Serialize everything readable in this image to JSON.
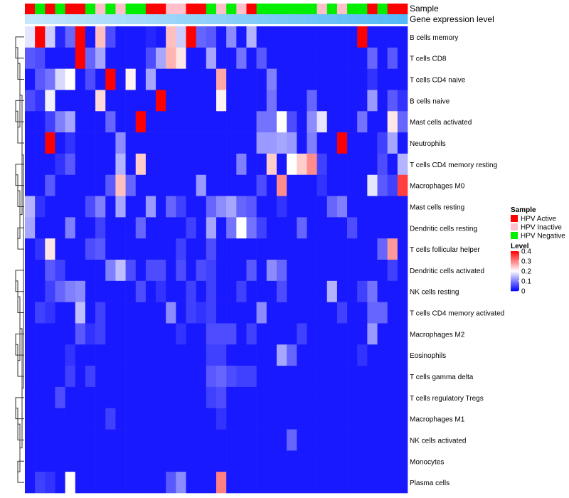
{
  "chart_data": {
    "type": "heatmap",
    "annotation_labels": {
      "sample": "Sample",
      "gene_expression": "Gene expression level"
    },
    "rows": [
      "B cells memory",
      "T cells CD8",
      "T cells CD4 naive",
      "B cells naive",
      "Mast cells activated",
      "Neutrophils",
      "T cells CD4 memory resting",
      "Macrophages M0",
      "Mast cells resting",
      "Dendritic cells resting",
      "T cells follicular helper",
      "Dendritic cells activated",
      "NK cells resting",
      "T cells CD4 memory activated",
      "Macrophages M2",
      "Eosinophils",
      "T cells gamma delta",
      "T cells regulatory  Tregs",
      "Macrophages M1",
      "NK cells activated",
      "Monocytes",
      "Plasma cells"
    ],
    "samples": [
      "HPV Active",
      "HPV Negative",
      "HPV Active",
      "HPV Negative",
      "HPV Active",
      "HPV Active",
      "HPV Negative",
      "HPV Inactive",
      "HPV Negative",
      "HPV Inactive",
      "HPV Negative",
      "HPV Negative",
      "HPV Active",
      "HPV Active",
      "HPV Inactive",
      "HPV Inactive",
      "HPV Active",
      "HPV Active",
      "HPV Negative",
      "HPV Inactive",
      "HPV Negative",
      "HPV Inactive",
      "HPV Active",
      "HPV Negative",
      "HPV Negative",
      "HPV Negative",
      "HPV Negative",
      "HPV Negative",
      "HPV Negative",
      "HPV Inactive",
      "HPV Negative",
      "HPV Inactive",
      "HPV Negative",
      "HPV Negative",
      "HPV Active",
      "HPV Negative",
      "HPV Active",
      "HPV Active"
    ],
    "sample_colors": {
      "HPV Active": "#ff0000",
      "HPV Inactive": "#ffc0cb",
      "HPV Negative": "#00ee00"
    },
    "gene_expression_gradient": [
      "#c6e6fb",
      "#55b9f7"
    ],
    "values": [
      [
        0.18,
        0.4,
        0.16,
        0.03,
        0.08,
        0.4,
        0.02,
        0.25,
        0.06,
        0.02,
        0.02,
        0.02,
        0.03,
        0.02,
        0.25,
        0.16,
        0.4,
        0.08,
        0.07,
        0.02,
        0.11,
        0.02,
        0.14,
        0.02,
        0.02,
        0.02,
        0.02,
        0.02,
        0.02,
        0.02,
        0.02,
        0.02,
        0.02,
        0.4,
        0.02,
        0.02,
        0.02,
        0.02
      ],
      [
        0.07,
        0.06,
        0.02,
        0.02,
        0.02,
        0.4,
        0.08,
        0.13,
        0.02,
        0.02,
        0.02,
        0.02,
        0.06,
        0.13,
        0.26,
        0.22,
        0.02,
        0.02,
        0.13,
        0.02,
        0.02,
        0.09,
        0.02,
        0.07,
        0.02,
        0.02,
        0.02,
        0.02,
        0.02,
        0.02,
        0.02,
        0.02,
        0.02,
        0.02,
        0.08,
        0.02,
        0.07,
        0.02
      ],
      [
        0.02,
        0.07,
        0.09,
        0.17,
        0.2,
        0.02,
        0.06,
        0.02,
        0.4,
        0.02,
        0.21,
        0.02,
        0.13,
        0.02,
        0.02,
        0.02,
        0.02,
        0.02,
        0.02,
        0.27,
        0.02,
        0.02,
        0.02,
        0.02,
        0.1,
        0.02,
        0.02,
        0.02,
        0.02,
        0.02,
        0.02,
        0.02,
        0.02,
        0.02,
        0.04,
        0.02,
        0.02,
        0.02
      ],
      [
        0.06,
        0.04,
        0.19,
        0.02,
        0.02,
        0.02,
        0.02,
        0.23,
        0.02,
        0.02,
        0.02,
        0.02,
        0.02,
        0.4,
        0.02,
        0.02,
        0.02,
        0.02,
        0.02,
        0.21,
        0.02,
        0.02,
        0.02,
        0.02,
        0.09,
        0.02,
        0.02,
        0.02,
        0.08,
        0.02,
        0.02,
        0.02,
        0.02,
        0.02,
        0.12,
        0.02,
        0.07,
        0.04
      ],
      [
        0.02,
        0.02,
        0.05,
        0.1,
        0.13,
        0.02,
        0.02,
        0.02,
        0.08,
        0.02,
        0.02,
        0.4,
        0.02,
        0.02,
        0.02,
        0.02,
        0.02,
        0.02,
        0.02,
        0.02,
        0.02,
        0.02,
        0.02,
        0.09,
        0.09,
        0.2,
        0.06,
        0.02,
        0.11,
        0.18,
        0.02,
        0.02,
        0.02,
        0.09,
        0.02,
        0.02,
        0.22,
        0.08
      ],
      [
        0.02,
        0.02,
        0.4,
        0.02,
        0.04,
        0.02,
        0.02,
        0.02,
        0.02,
        0.11,
        0.02,
        0.02,
        0.02,
        0.02,
        0.02,
        0.02,
        0.02,
        0.02,
        0.02,
        0.02,
        0.02,
        0.02,
        0.02,
        0.12,
        0.12,
        0.13,
        0.12,
        0.02,
        0.1,
        0.02,
        0.02,
        0.4,
        0.02,
        0.02,
        0.02,
        0.05,
        0.13,
        0.02
      ],
      [
        0.02,
        0.02,
        0.02,
        0.04,
        0.07,
        0.02,
        0.02,
        0.02,
        0.02,
        0.14,
        0.02,
        0.24,
        0.02,
        0.02,
        0.02,
        0.02,
        0.02,
        0.02,
        0.02,
        0.02,
        0.02,
        0.1,
        0.02,
        0.02,
        0.24,
        0.02,
        0.2,
        0.24,
        0.29,
        0.05,
        0.02,
        0.02,
        0.02,
        0.02,
        0.02,
        0.06,
        0.02,
        0.14
      ],
      [
        0.02,
        0.02,
        0.07,
        0.02,
        0.02,
        0.02,
        0.02,
        0.02,
        0.07,
        0.25,
        0.08,
        0.02,
        0.02,
        0.02,
        0.02,
        0.02,
        0.02,
        0.12,
        0.02,
        0.02,
        0.02,
        0.02,
        0.02,
        0.06,
        0.02,
        0.29,
        0.02,
        0.02,
        0.02,
        0.04,
        0.02,
        0.02,
        0.02,
        0.02,
        0.18,
        0.07,
        0.05,
        0.35
      ],
      [
        0.14,
        0.04,
        0.02,
        0.02,
        0.02,
        0.02,
        0.06,
        0.1,
        0.02,
        0.13,
        0.02,
        0.02,
        0.12,
        0.02,
        0.08,
        0.05,
        0.02,
        0.02,
        0.08,
        0.11,
        0.13,
        0.08,
        0.07,
        0.02,
        0.02,
        0.04,
        0.02,
        0.02,
        0.02,
        0.02,
        0.08,
        0.1,
        0.02,
        0.02,
        0.02,
        0.02,
        0.02,
        0.02
      ],
      [
        0.13,
        0.02,
        0.02,
        0.02,
        0.1,
        0.02,
        0.02,
        0.05,
        0.02,
        0.02,
        0.02,
        0.08,
        0.02,
        0.02,
        0.02,
        0.02,
        0.05,
        0.02,
        0.13,
        0.02,
        0.09,
        0.2,
        0.09,
        0.05,
        0.02,
        0.02,
        0.02,
        0.08,
        0.02,
        0.02,
        0.02,
        0.02,
        0.06,
        0.02,
        0.02,
        0.02,
        0.02,
        0.02
      ],
      [
        0.02,
        0.04,
        0.22,
        0.02,
        0.02,
        0.02,
        0.06,
        0.07,
        0.02,
        0.02,
        0.02,
        0.02,
        0.02,
        0.02,
        0.02,
        0.05,
        0.02,
        0.02,
        0.06,
        0.02,
        0.02,
        0.02,
        0.02,
        0.02,
        0.02,
        0.02,
        0.02,
        0.02,
        0.02,
        0.02,
        0.02,
        0.02,
        0.02,
        0.02,
        0.02,
        0.08,
        0.28,
        0.02
      ],
      [
        0.02,
        0.02,
        0.07,
        0.05,
        0.02,
        0.02,
        0.02,
        0.02,
        0.1,
        0.15,
        0.06,
        0.02,
        0.06,
        0.06,
        0.02,
        0.06,
        0.02,
        0.06,
        0.05,
        0.02,
        0.02,
        0.02,
        0.07,
        0.02,
        0.11,
        0.08,
        0.02,
        0.02,
        0.02,
        0.02,
        0.02,
        0.02,
        0.02,
        0.02,
        0.02,
        0.02,
        0.05,
        0.02
      ],
      [
        0.02,
        0.02,
        0.05,
        0.08,
        0.1,
        0.11,
        0.02,
        0.02,
        0.02,
        0.02,
        0.02,
        0.06,
        0.02,
        0.04,
        0.02,
        0.02,
        0.05,
        0.02,
        0.05,
        0.02,
        0.02,
        0.05,
        0.02,
        0.02,
        0.02,
        0.06,
        0.02,
        0.02,
        0.02,
        0.02,
        0.14,
        0.02,
        0.02,
        0.05,
        0.09,
        0.02,
        0.02,
        0.02
      ],
      [
        0.02,
        0.05,
        0.04,
        0.02,
        0.02,
        0.15,
        0.02,
        0.05,
        0.02,
        0.02,
        0.02,
        0.02,
        0.02,
        0.02,
        0.11,
        0.02,
        0.05,
        0.04,
        0.05,
        0.02,
        0.02,
        0.02,
        0.02,
        0.11,
        0.02,
        0.02,
        0.02,
        0.02,
        0.02,
        0.02,
        0.02,
        0.05,
        0.02,
        0.02,
        0.08,
        0.08,
        0.02,
        0.02
      ],
      [
        0.02,
        0.02,
        0.02,
        0.02,
        0.02,
        0.07,
        0.04,
        0.05,
        0.02,
        0.02,
        0.02,
        0.02,
        0.02,
        0.02,
        0.02,
        0.04,
        0.02,
        0.02,
        0.06,
        0.06,
        0.06,
        0.02,
        0.05,
        0.02,
        0.02,
        0.02,
        0.02,
        0.05,
        0.02,
        0.02,
        0.02,
        0.02,
        0.02,
        0.02,
        0.12,
        0.02,
        0.02,
        0.02
      ],
      [
        0.02,
        0.02,
        0.02,
        0.02,
        0.04,
        0.02,
        0.02,
        0.02,
        0.02,
        0.02,
        0.02,
        0.02,
        0.02,
        0.02,
        0.02,
        0.02,
        0.02,
        0.02,
        0.05,
        0.05,
        0.02,
        0.02,
        0.02,
        0.02,
        0.02,
        0.13,
        0.08,
        0.02,
        0.02,
        0.02,
        0.02,
        0.02,
        0.02,
        0.04,
        0.02,
        0.02,
        0.02,
        0.02
      ],
      [
        0.02,
        0.02,
        0.02,
        0.02,
        0.05,
        0.02,
        0.05,
        0.02,
        0.02,
        0.02,
        0.02,
        0.02,
        0.02,
        0.02,
        0.02,
        0.02,
        0.02,
        0.02,
        0.07,
        0.08,
        0.06,
        0.05,
        0.05,
        0.02,
        0.02,
        0.02,
        0.02,
        0.02,
        0.02,
        0.02,
        0.02,
        0.02,
        0.02,
        0.02,
        0.02,
        0.02,
        0.02,
        0.02
      ],
      [
        0.02,
        0.02,
        0.02,
        0.06,
        0.02,
        0.02,
        0.02,
        0.02,
        0.02,
        0.02,
        0.02,
        0.02,
        0.02,
        0.02,
        0.02,
        0.02,
        0.02,
        0.02,
        0.05,
        0.06,
        0.02,
        0.02,
        0.02,
        0.02,
        0.02,
        0.02,
        0.02,
        0.02,
        0.02,
        0.02,
        0.02,
        0.02,
        0.02,
        0.02,
        0.02,
        0.02,
        0.02,
        0.02
      ],
      [
        0.02,
        0.02,
        0.02,
        0.02,
        0.02,
        0.02,
        0.02,
        0.02,
        0.05,
        0.02,
        0.02,
        0.02,
        0.02,
        0.02,
        0.02,
        0.02,
        0.02,
        0.02,
        0.02,
        0.04,
        0.02,
        0.02,
        0.02,
        0.02,
        0.02,
        0.02,
        0.02,
        0.02,
        0.02,
        0.02,
        0.02,
        0.02,
        0.02,
        0.02,
        0.02,
        0.02,
        0.02,
        0.02
      ],
      [
        0.02,
        0.02,
        0.02,
        0.02,
        0.02,
        0.02,
        0.02,
        0.02,
        0.02,
        0.02,
        0.02,
        0.02,
        0.02,
        0.02,
        0.02,
        0.02,
        0.02,
        0.02,
        0.02,
        0.02,
        0.02,
        0.02,
        0.02,
        0.02,
        0.02,
        0.02,
        0.08,
        0.02,
        0.02,
        0.02,
        0.02,
        0.02,
        0.02,
        0.02,
        0.02,
        0.02,
        0.02,
        0.02
      ],
      [
        0.02,
        0.02,
        0.02,
        0.02,
        0.02,
        0.02,
        0.02,
        0.02,
        0.02,
        0.02,
        0.02,
        0.02,
        0.02,
        0.02,
        0.02,
        0.02,
        0.02,
        0.02,
        0.02,
        0.02,
        0.02,
        0.02,
        0.02,
        0.02,
        0.02,
        0.02,
        0.02,
        0.02,
        0.02,
        0.02,
        0.02,
        0.02,
        0.02,
        0.02,
        0.02,
        0.02,
        0.02,
        0.02
      ],
      [
        0.02,
        0.05,
        0.04,
        0.02,
        0.2,
        0.02,
        0.02,
        0.02,
        0.02,
        0.02,
        0.02,
        0.02,
        0.02,
        0.02,
        0.07,
        0.11,
        0.02,
        0.02,
        0.02,
        0.3,
        0.02,
        0.02,
        0.02,
        0.02,
        0.02,
        0.02,
        0.02,
        0.02,
        0.02,
        0.02,
        0.02,
        0.02,
        0.02,
        0.02,
        0.02,
        0.02,
        0.02,
        0.02
      ]
    ],
    "legend": {
      "sample_title": "Sample",
      "sample_items": [
        "HPV Active",
        "HPV Inactive",
        "HPV Negative"
      ],
      "level_title": "Level",
      "level_ticks": [
        "0.4",
        "0.3",
        "0.2",
        "0.1",
        "0"
      ],
      "level_tick_values": [
        0.4,
        0.3,
        0.2,
        0.1,
        0
      ],
      "level_range": [
        0,
        0.4
      ],
      "level_colors": [
        "#0000ff",
        "#ffffff",
        "#ff0000"
      ]
    }
  }
}
